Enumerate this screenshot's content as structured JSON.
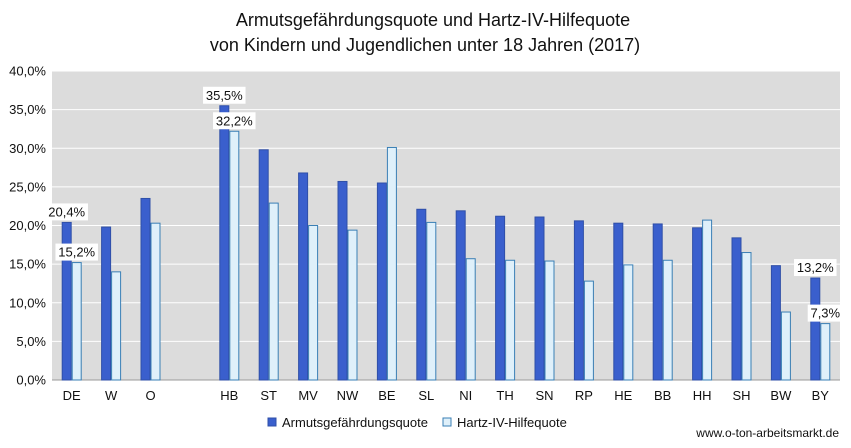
{
  "chart_data": {
    "type": "bar",
    "title": "Armutsgefährdungsquote und Hartz-IV-Hilfequote",
    "subtitle": "von Kindern und Jugendlichen unter 18 Jahren (2017)",
    "xlabel": "",
    "ylabel": "",
    "ylim": [
      0,
      40
    ],
    "yticks": [
      "0,0%",
      "5,0%",
      "10,0%",
      "15,0%",
      "20,0%",
      "25,0%",
      "30,0%",
      "35,0%",
      "40,0%"
    ],
    "grid": true,
    "legend_position": "bottom",
    "categories": [
      "DE",
      "W",
      "O",
      "",
      "HB",
      "ST",
      "MV",
      "NW",
      "BE",
      "SL",
      "NI",
      "TH",
      "SN",
      "RP",
      "HE",
      "BB",
      "HH",
      "SH",
      "BW",
      "BY"
    ],
    "series": [
      {
        "name": "Armutsgefährdungsquote",
        "color": "#3a5fcd",
        "values": [
          20.4,
          19.8,
          23.5,
          null,
          35.5,
          29.8,
          26.8,
          25.7,
          25.5,
          22.1,
          21.9,
          21.2,
          21.1,
          20.6,
          20.3,
          20.2,
          19.7,
          18.4,
          14.8,
          13.2
        ]
      },
      {
        "name": "Hartz-IV-Hilfequote",
        "color": "#dff0fa",
        "values": [
          15.2,
          14.0,
          20.3,
          null,
          32.2,
          22.9,
          20.0,
          19.4,
          30.1,
          20.4,
          15.7,
          15.5,
          15.4,
          12.8,
          14.9,
          15.5,
          20.7,
          16.5,
          8.8,
          7.3
        ]
      }
    ],
    "data_labels": [
      {
        "series": 0,
        "index": 0,
        "text": "20,4%"
      },
      {
        "series": 1,
        "index": 0,
        "text": "15,2%"
      },
      {
        "series": 0,
        "index": 4,
        "text": "35,5%"
      },
      {
        "series": 1,
        "index": 4,
        "text": "32,2%"
      },
      {
        "series": 0,
        "index": 19,
        "text": "13,2%"
      },
      {
        "series": 1,
        "index": 19,
        "text": "7,3%"
      }
    ],
    "source": "www.o-ton-arbeitsmarkt.de"
  }
}
